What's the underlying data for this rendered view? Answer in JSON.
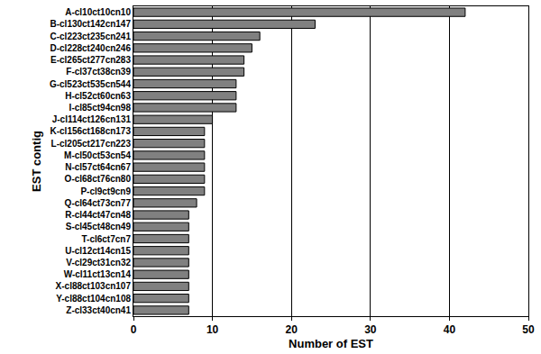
{
  "chart_data": {
    "type": "bar",
    "orientation": "horizontal",
    "x_label": "Number of EST",
    "y_label": "EST contig",
    "categories": [
      "A-cl10ct10cn10",
      "B-cl130ct142cn147",
      "C-cl223ct235cn241",
      "D-cl228ct240cn246",
      "E-cl265ct277cn283",
      "F-cl37ct38cn39",
      "G-cl523ct535cn544",
      "H-cl52ct60cn63",
      "I-cl85ct94cn98",
      "J-cl114ct126cn131",
      "K-cl156ct168cn173",
      "L-cl205ct217cn223",
      "M-cl50ct53cn54",
      "N-cl57ct64cn67",
      "O-cl68ct76cn80",
      "P-cl9ct9cn9",
      "Q-cl64ct73cn77",
      "R-cl44ct47cn48",
      "S-cl45ct48cn49",
      "T-cl6ct7cn7",
      "U-cl12ct14cn15",
      "V-cl29ct31cn32",
      "W-cl11ct13cn14",
      "X-cl88ct103cn107",
      "Y-cl88ct104cn108",
      "Z-cl33ct40cn41"
    ],
    "values": [
      42,
      23,
      16,
      15,
      14,
      14,
      13,
      13,
      13,
      10,
      9,
      9,
      9,
      9,
      9,
      9,
      8,
      7,
      7,
      7,
      7,
      7,
      7,
      7,
      7,
      7
    ],
    "color": "#808080",
    "xlim": [
      0,
      50
    ],
    "xticks": [
      0,
      10,
      20,
      30,
      40,
      50
    ],
    "grid": true
  }
}
